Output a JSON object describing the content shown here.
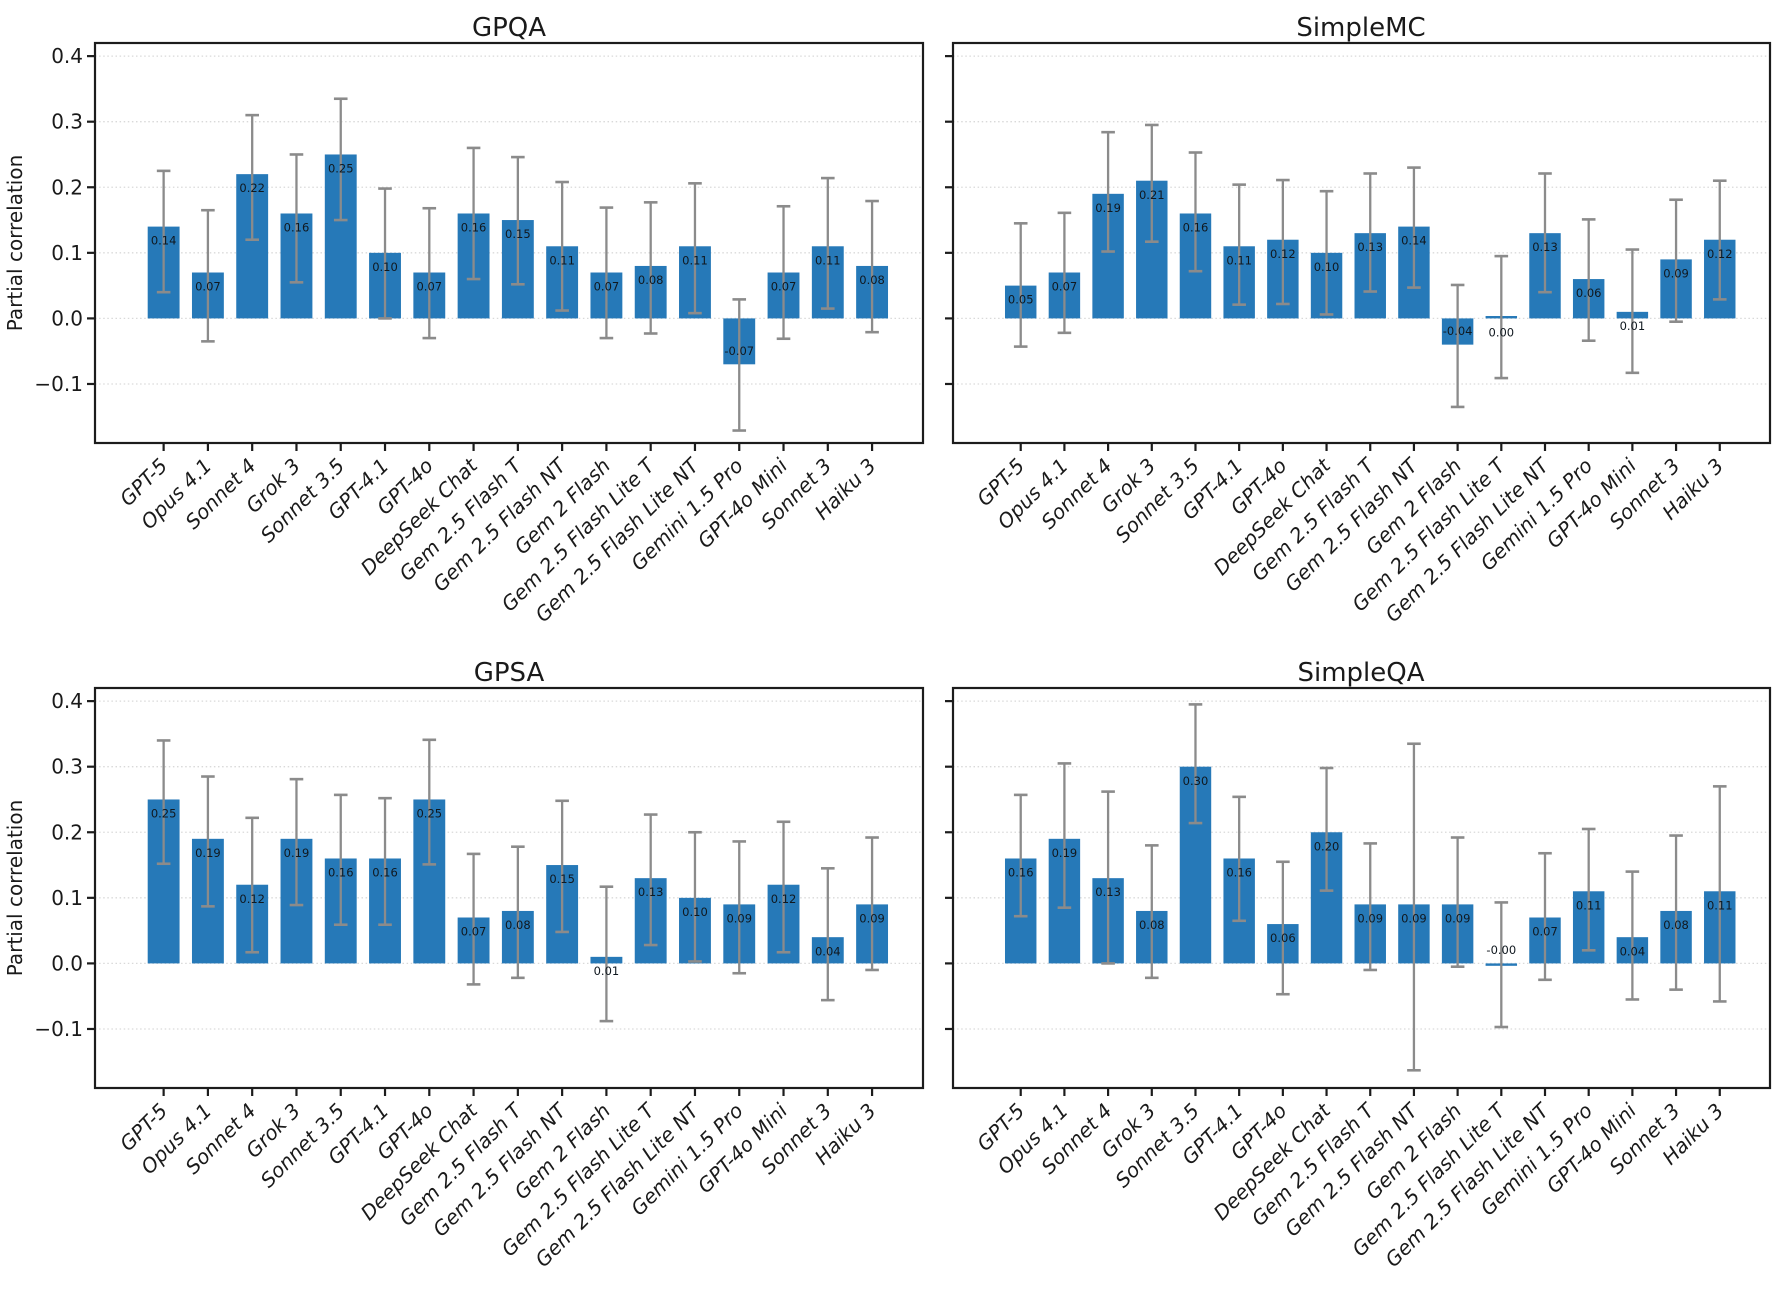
{
  "figure": {
    "ylabel": "Partial correlation",
    "ytick_labels": [
      "0.4",
      "0.3",
      "0.2",
      "0.1",
      "0.0",
      "−0.1"
    ],
    "ytick_values": [
      0.4,
      0.3,
      0.2,
      0.1,
      0.0,
      -0.1
    ],
    "ylim": [
      -0.19,
      0.42
    ],
    "grid": true,
    "grid_style": "dotted",
    "legend": false,
    "bar_color": "#2679b8",
    "error_color": "#8b8b8b",
    "value_label_color": "#10181f",
    "grid_color": "#d9d9d9",
    "spine_color": "#1c1c1c"
  },
  "categories": [
    "GPT-5",
    "Opus 4.1",
    "Sonnet 4",
    "Grok 3",
    "Sonnet 3.5",
    "GPT-4.1",
    "GPT-4o",
    "DeepSeek Chat",
    "Gem 2.5 Flash T",
    "Gem 2.5 Flash NT",
    "Gem 2 Flash",
    "Gem 2.5 Flash Lite T",
    "Gem 2.5 Flash Lite NT",
    "Gemini 1.5 Pro",
    "GPT-4o Mini",
    "Sonnet 3",
    "Haiku 3"
  ],
  "chart_data": [
    {
      "type": "bar",
      "title": "GPQA",
      "ylabel": "Partial correlation",
      "ylim": [
        -0.19,
        0.42
      ],
      "categories": [
        "GPT-5",
        "Opus 4.1",
        "Sonnet 4",
        "Grok 3",
        "Sonnet 3.5",
        "GPT-4.1",
        "GPT-4o",
        "DeepSeek Chat",
        "Gem 2.5 Flash T",
        "Gem 2.5 Flash NT",
        "Gem 2 Flash",
        "Gem 2.5 Flash Lite T",
        "Gem 2.5 Flash Lite NT",
        "Gemini 1.5 Pro",
        "GPT-4o Mini",
        "Sonnet 3",
        "Haiku 3"
      ],
      "values": [
        0.14,
        0.07,
        0.22,
        0.16,
        0.25,
        0.1,
        0.07,
        0.16,
        0.15,
        0.11,
        0.07,
        0.08,
        0.11,
        -0.07,
        0.07,
        0.11,
        0.08
      ],
      "bar_labels": [
        "0.14",
        "0.07",
        "0.22",
        "0.16",
        "0.25",
        "0.10",
        "0.07",
        "0.16",
        "0.15",
        "0.11",
        "0.07",
        "0.08",
        "0.11",
        "-0.07",
        "0.07",
        "0.11",
        "0.08"
      ],
      "ci_low": [
        0.04,
        -0.035,
        0.12,
        0.055,
        0.15,
        0.0,
        -0.03,
        0.06,
        0.052,
        0.012,
        -0.03,
        -0.023,
        0.008,
        -0.171,
        -0.031,
        0.015,
        -0.021
      ],
      "ci_high": [
        0.225,
        0.165,
        0.31,
        0.25,
        0.335,
        0.198,
        0.168,
        0.26,
        0.246,
        0.208,
        0.169,
        0.177,
        0.206,
        0.029,
        0.171,
        0.214,
        0.179
      ]
    },
    {
      "type": "bar",
      "title": "SimpleMC",
      "ylabel": "Partial correlation",
      "ylim": [
        -0.19,
        0.42
      ],
      "categories": [
        "GPT-5",
        "Opus 4.1",
        "Sonnet 4",
        "Grok 3",
        "Sonnet 3.5",
        "GPT-4.1",
        "GPT-4o",
        "DeepSeek Chat",
        "Gem 2.5 Flash T",
        "Gem 2.5 Flash NT",
        "Gem 2 Flash",
        "Gem 2.5 Flash Lite T",
        "Gem 2.5 Flash Lite NT",
        "Gemini 1.5 Pro",
        "GPT-4o Mini",
        "Sonnet 3",
        "Haiku 3"
      ],
      "values": [
        0.05,
        0.07,
        0.19,
        0.21,
        0.16,
        0.11,
        0.12,
        0.1,
        0.13,
        0.14,
        -0.04,
        0.0,
        0.13,
        0.06,
        0.01,
        0.09,
        0.12
      ],
      "bar_labels": [
        "0.05",
        "0.07",
        "0.19",
        "0.21",
        "0.16",
        "0.11",
        "0.12",
        "0.10",
        "0.13",
        "0.14",
        "-0.04",
        "0.00",
        "0.13",
        "0.06",
        "0.01",
        "0.09",
        "0.12"
      ],
      "ci_low": [
        -0.043,
        -0.022,
        0.102,
        0.117,
        0.072,
        0.021,
        0.022,
        0.006,
        0.041,
        0.047,
        -0.135,
        -0.091,
        0.04,
        -0.034,
        -0.083,
        -0.005,
        0.029
      ],
      "ci_high": [
        0.145,
        0.161,
        0.284,
        0.295,
        0.253,
        0.204,
        0.211,
        0.194,
        0.221,
        0.23,
        0.051,
        0.095,
        0.221,
        0.151,
        0.105,
        0.181,
        0.21
      ]
    },
    {
      "type": "bar",
      "title": "GPSA",
      "ylabel": "Partial correlation",
      "ylim": [
        -0.19,
        0.42
      ],
      "categories": [
        "GPT-5",
        "Opus 4.1",
        "Sonnet 4",
        "Grok 3",
        "Sonnet 3.5",
        "GPT-4.1",
        "GPT-4o",
        "DeepSeek Chat",
        "Gem 2.5 Flash T",
        "Gem 2.5 Flash NT",
        "Gem 2 Flash",
        "Gem 2.5 Flash Lite T",
        "Gem 2.5 Flash Lite NT",
        "Gemini 1.5 Pro",
        "GPT-4o Mini",
        "Sonnet 3",
        "Haiku 3"
      ],
      "values": [
        0.25,
        0.19,
        0.12,
        0.19,
        0.16,
        0.16,
        0.25,
        0.07,
        0.08,
        0.15,
        0.01,
        0.13,
        0.1,
        0.09,
        0.12,
        0.04,
        0.09
      ],
      "bar_labels": [
        "0.25",
        "0.19",
        "0.12",
        "0.19",
        "0.16",
        "0.16",
        "0.25",
        "0.07",
        "0.08",
        "0.15",
        "0.01",
        "0.13",
        "0.10",
        "0.09",
        "0.12",
        "0.04",
        "0.09"
      ],
      "ci_low": [
        0.152,
        0.087,
        0.017,
        0.089,
        0.059,
        0.059,
        0.151,
        -0.032,
        -0.022,
        0.048,
        -0.088,
        0.028,
        0.003,
        -0.015,
        0.017,
        -0.056,
        -0.01
      ],
      "ci_high": [
        0.34,
        0.285,
        0.222,
        0.281,
        0.257,
        0.252,
        0.341,
        0.167,
        0.178,
        0.248,
        0.117,
        0.227,
        0.2,
        0.186,
        0.216,
        0.145,
        0.192
      ]
    },
    {
      "type": "bar",
      "title": "SimpleQA",
      "ylabel": "Partial correlation",
      "ylim": [
        -0.19,
        0.42
      ],
      "categories": [
        "GPT-5",
        "Opus 4.1",
        "Sonnet 4",
        "Grok 3",
        "Sonnet 3.5",
        "GPT-4.1",
        "GPT-4o",
        "DeepSeek Chat",
        "Gem 2.5 Flash T",
        "Gem 2.5 Flash NT",
        "Gem 2 Flash",
        "Gem 2.5 Flash Lite T",
        "Gem 2.5 Flash Lite NT",
        "Gemini 1.5 Pro",
        "GPT-4o Mini",
        "Sonnet 3",
        "Haiku 3"
      ],
      "values": [
        0.16,
        0.19,
        0.13,
        0.08,
        0.3,
        0.16,
        0.06,
        0.2,
        0.09,
        0.09,
        0.09,
        -0.0,
        0.07,
        0.11,
        0.04,
        0.08,
        0.11
      ],
      "bar_labels": [
        "0.16",
        "0.19",
        "0.13",
        "0.08",
        "0.30",
        "0.16",
        "0.06",
        "0.20",
        "0.09",
        "0.09",
        "0.09",
        "-0.00",
        "0.07",
        "0.11",
        "0.04",
        "0.08",
        "0.11"
      ],
      "ci_low": [
        0.072,
        0.085,
        0.0,
        -0.022,
        0.214,
        0.065,
        -0.047,
        0.111,
        -0.01,
        -0.163,
        -0.005,
        -0.097,
        -0.025,
        0.02,
        -0.055,
        -0.04,
        -0.058
      ],
      "ci_high": [
        0.257,
        0.305,
        0.262,
        0.18,
        0.395,
        0.254,
        0.155,
        0.298,
        0.183,
        0.335,
        0.192,
        0.093,
        0.168,
        0.205,
        0.14,
        0.195,
        0.27
      ]
    }
  ]
}
